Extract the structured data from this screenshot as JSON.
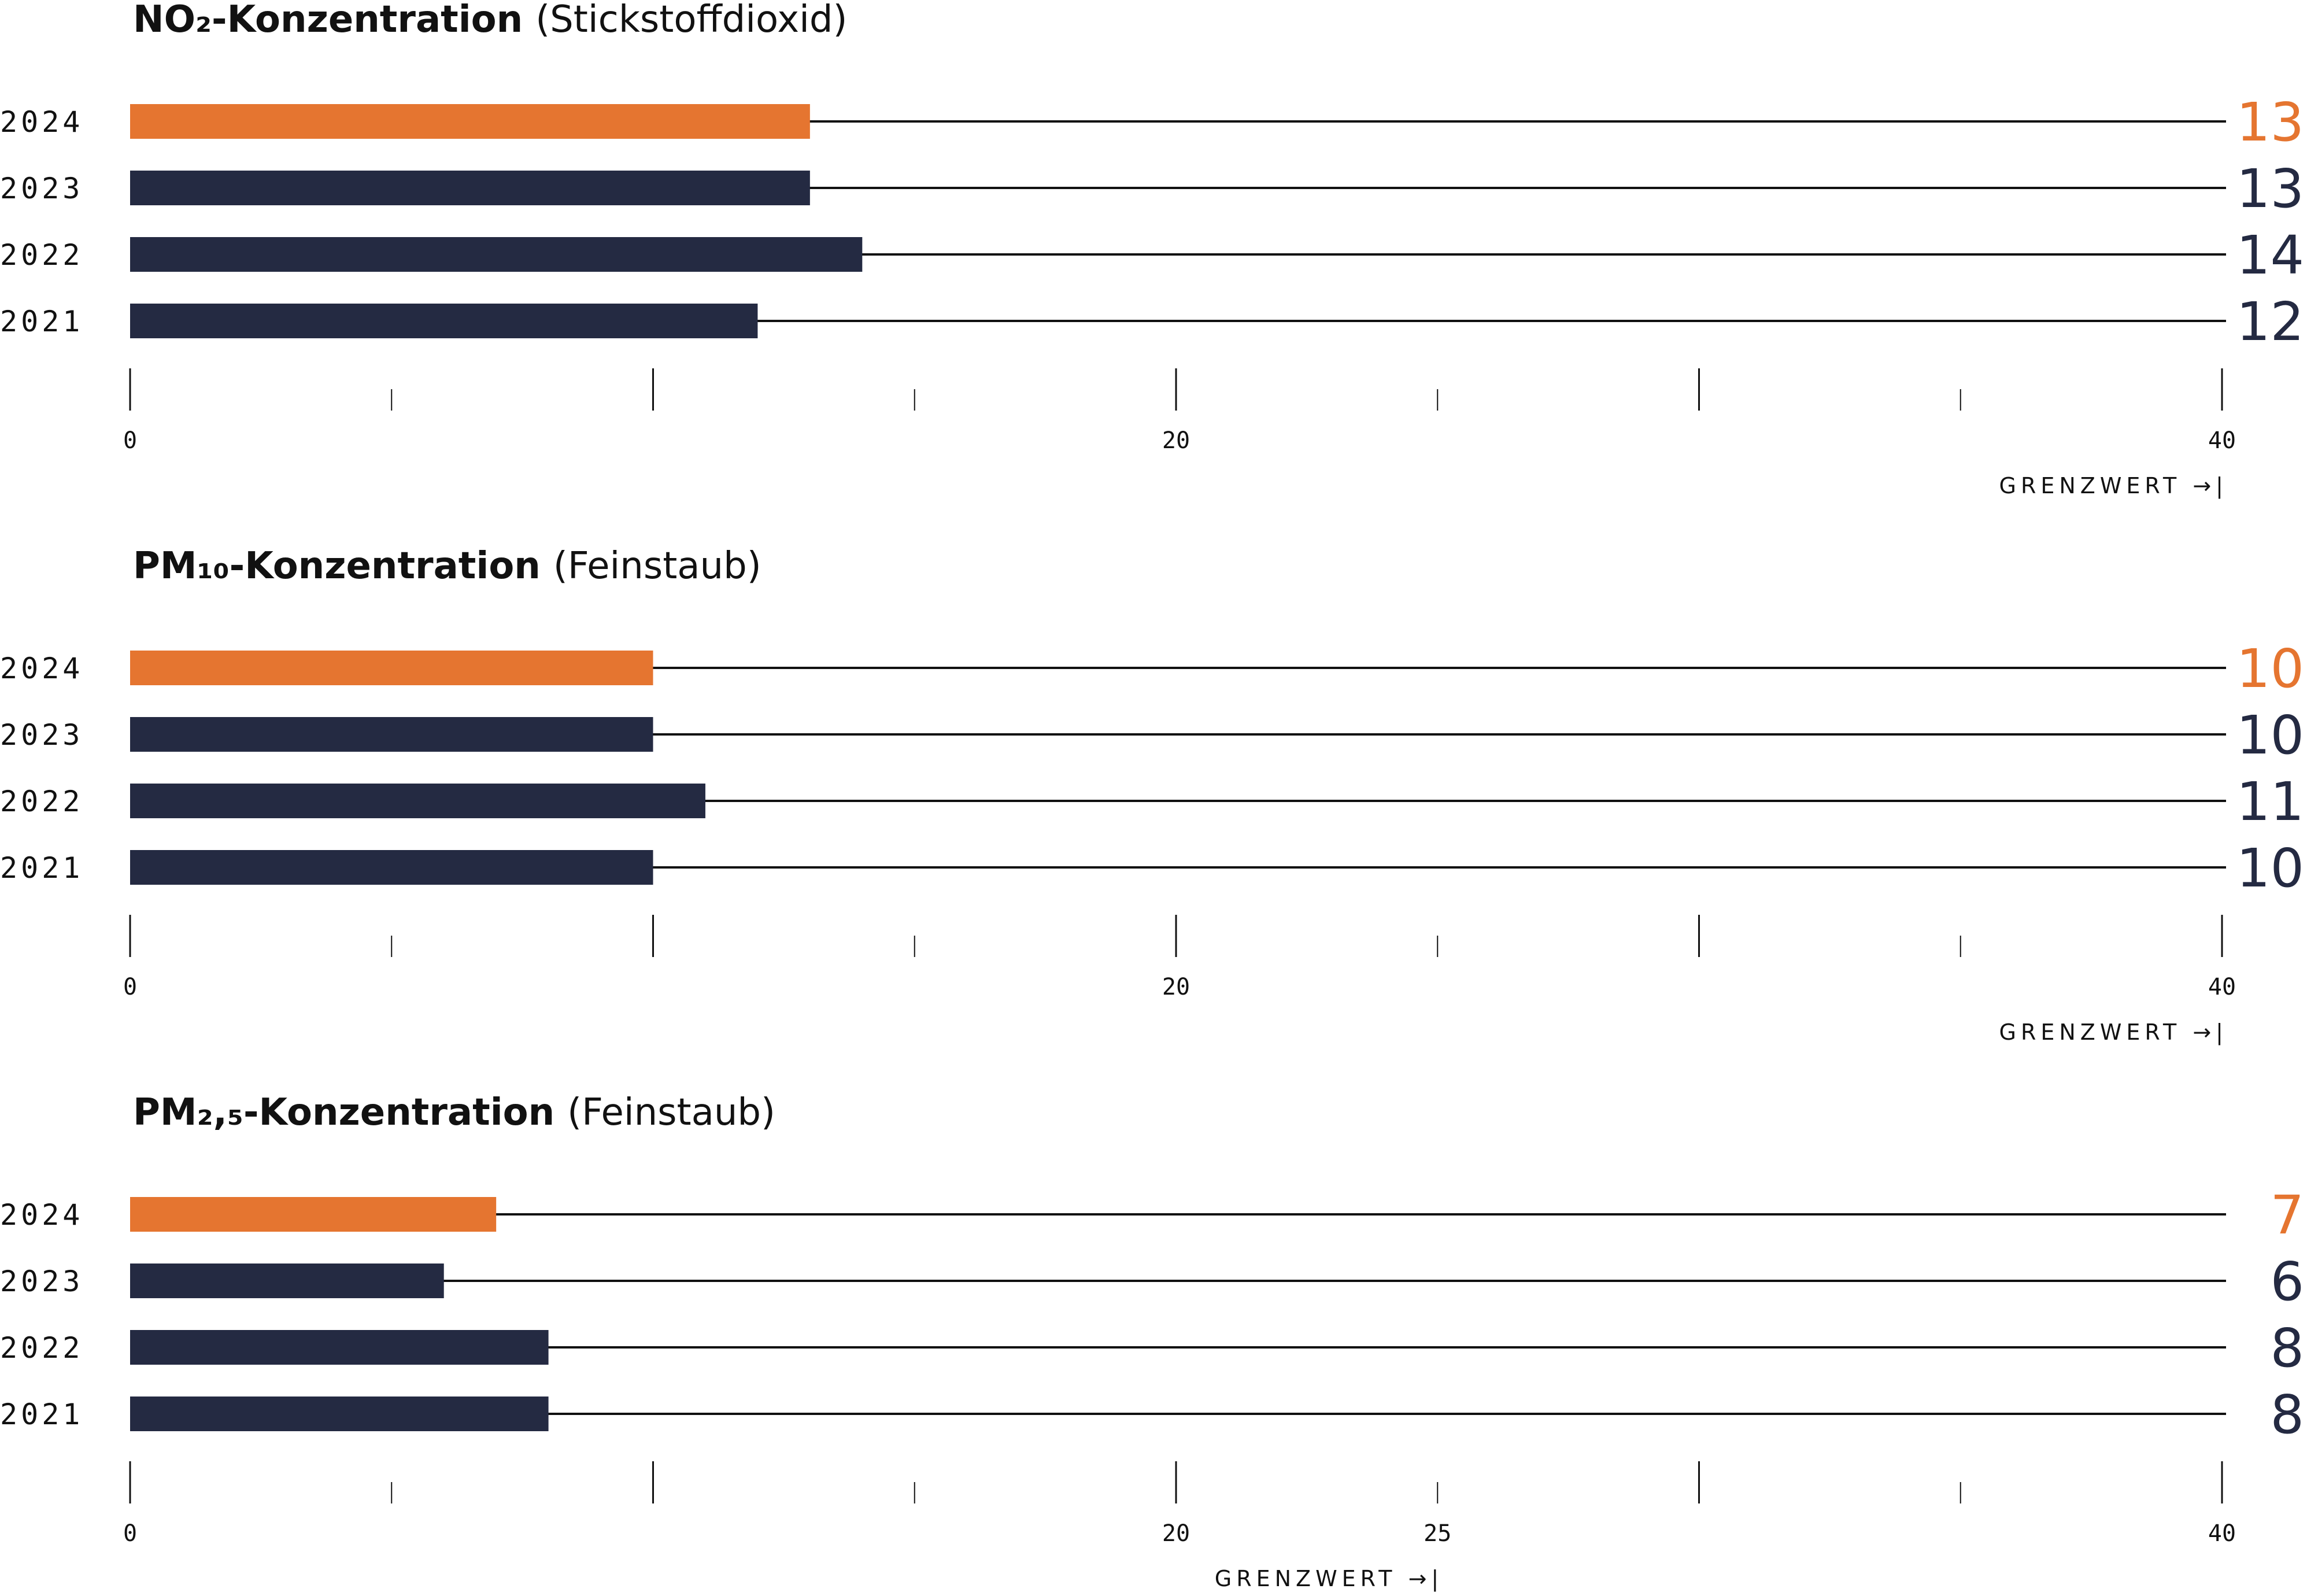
{
  "colors": {
    "highlight": "#e57530",
    "bar": "#242a42",
    "line": "#111111"
  },
  "chart_data": [
    {
      "type": "bar",
      "orientation": "horizontal",
      "title_main": "NO₂-Konzentration",
      "title_sub": "(Stickstoffdioxid)",
      "categories": [
        "2024",
        "2023",
        "2022",
        "2021"
      ],
      "values": [
        13,
        13,
        14,
        12
      ],
      "highlight": "2024",
      "xlim": [
        0,
        40
      ],
      "tick_labels": [
        "0",
        "20",
        "40"
      ],
      "limit_value": 40,
      "limit_label": "GRENZWERT →|"
    },
    {
      "type": "bar",
      "orientation": "horizontal",
      "title_main": "PM₁₀-Konzentration",
      "title_sub": "(Feinstaub)",
      "categories": [
        "2024",
        "2023",
        "2022",
        "2021"
      ],
      "values": [
        10,
        10,
        11,
        10
      ],
      "highlight": "2024",
      "xlim": [
        0,
        40
      ],
      "tick_labels": [
        "0",
        "20",
        "40"
      ],
      "limit_value": 40,
      "limit_label": "GRENZWERT →|"
    },
    {
      "type": "bar",
      "orientation": "horizontal",
      "title_main": "PM₂,₅-Konzentration",
      "title_sub": "(Feinstaub)",
      "categories": [
        "2024",
        "2023",
        "2022",
        "2021"
      ],
      "values": [
        7,
        6,
        8,
        8
      ],
      "highlight": "2024",
      "xlim": [
        0,
        40
      ],
      "tick_labels": [
        "0",
        "20",
        "25",
        "40"
      ],
      "limit_value": 25,
      "limit_label": "GRENZWERT →|"
    }
  ]
}
